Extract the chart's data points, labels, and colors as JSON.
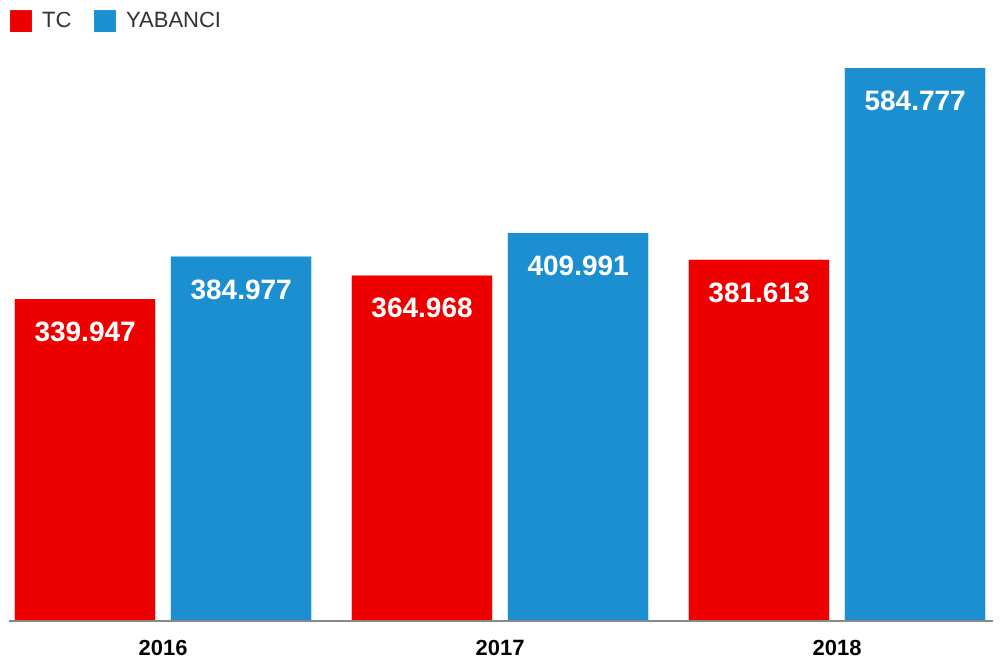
{
  "chart_data": {
    "type": "bar",
    "categories": [
      "2016",
      "2017",
      "2018"
    ],
    "series": [
      {
        "name": "TC",
        "color": "#ee0000",
        "values": [
          339947,
          364968,
          381613
        ],
        "value_labels": [
          "339.947",
          "364.968",
          "381.613"
        ]
      },
      {
        "name": "YABANCI",
        "color": "#1b8fd0",
        "values": [
          384977,
          409991,
          584777
        ],
        "value_labels": [
          "384.977",
          "409.991",
          "584.777"
        ]
      }
    ],
    "legend": "top left",
    "grid": false
  }
}
